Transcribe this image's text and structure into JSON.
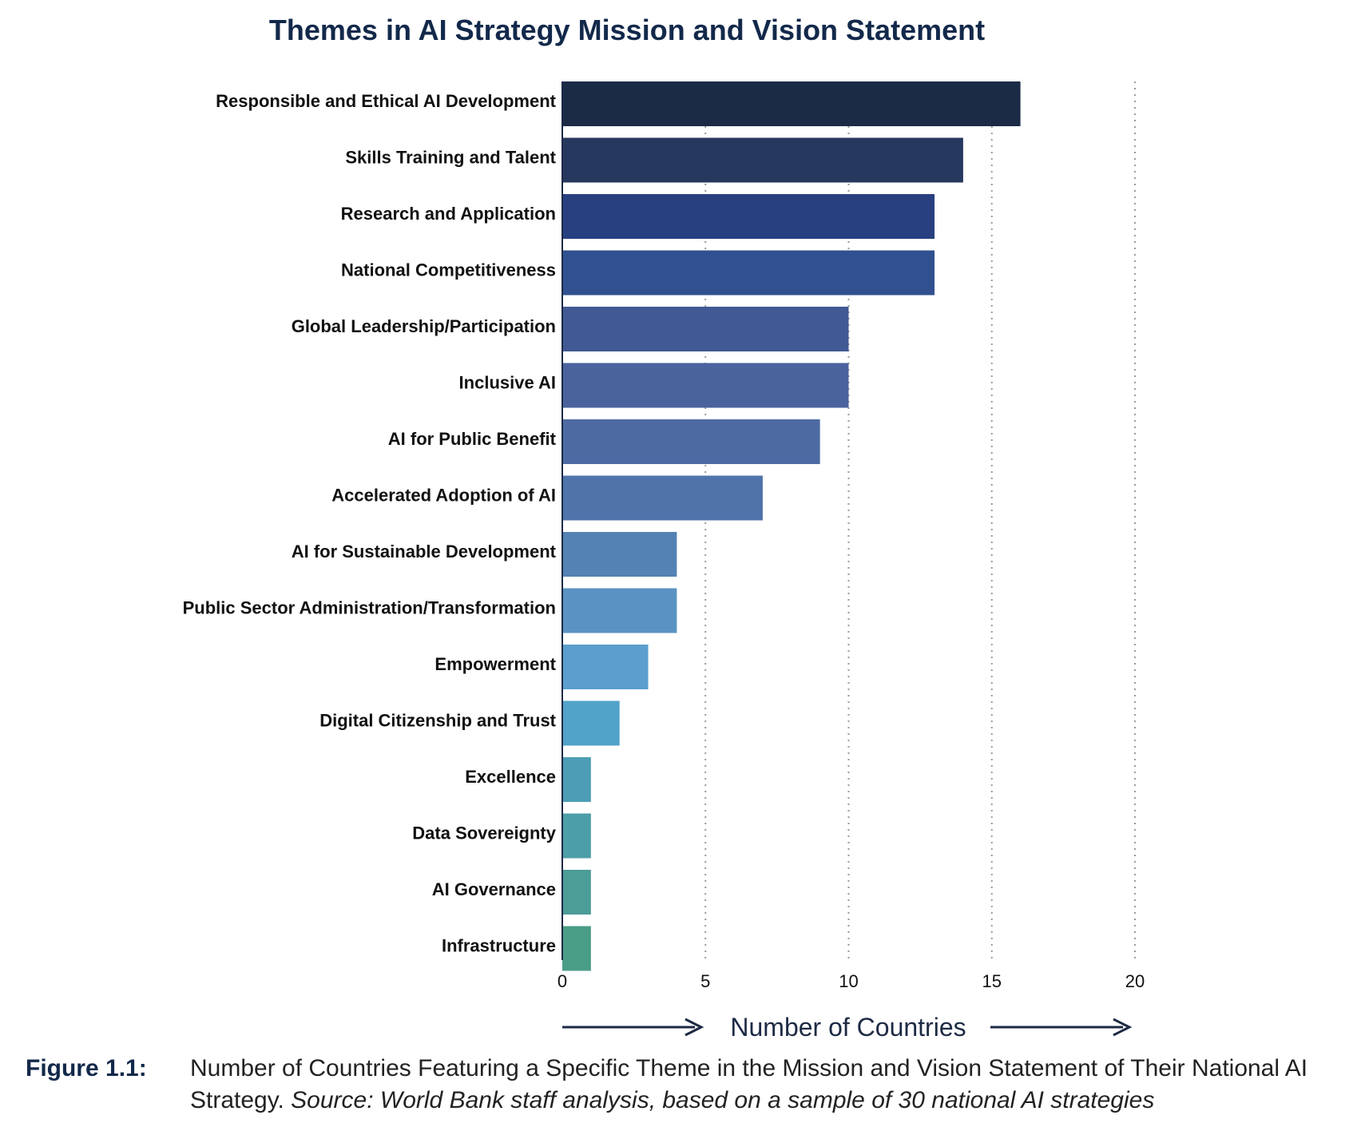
{
  "chart_data": {
    "type": "bar",
    "orientation": "horizontal",
    "title": "Themes in AI Strategy Mission and Vision Statement",
    "xlabel": "Number of Countries",
    "ylabel": "",
    "xlim": [
      0,
      20
    ],
    "xticks": [
      "0",
      "5",
      "10",
      "15",
      "20"
    ],
    "grid": "vertical dotted",
    "categories": [
      "Responsible and Ethical AI Development",
      "Skills Training and Talent",
      "Research and Application",
      "National Competitiveness",
      "Global Leadership/Participation",
      "Inclusive AI",
      "AI for Public Benefit",
      "Accelerated Adoption of AI",
      "AI for Sustainable Development",
      "Public Sector Administration/Transformation",
      "Empowerment",
      "Digital Citizenship and Trust",
      "Excellence",
      "Data Sovereignty",
      "AI Governance",
      "Infrastructure"
    ],
    "values": [
      16,
      14,
      13,
      13,
      10,
      10,
      9,
      7,
      4,
      4,
      3,
      2,
      1,
      1,
      1,
      1
    ],
    "colors": [
      "#1b2a45",
      "#27385e",
      "#284080",
      "#31508f",
      "#415994",
      "#4a639d",
      "#4d6aa3",
      "#5073aa",
      "#5482b3",
      "#5a93c3",
      "#5a9fcd",
      "#51a3c9",
      "#4c9db5",
      "#4c9ea8",
      "#4c9c98",
      "#4a9d86"
    ]
  },
  "caption": {
    "label": "Figure 1.1:",
    "text": "Number of Countries Featuring a Specific Theme in the Mission and Vision Statement of Their National AI Strategy. ",
    "source": "Source: World Bank staff analysis, based on a sample of 30 national AI strategies"
  }
}
